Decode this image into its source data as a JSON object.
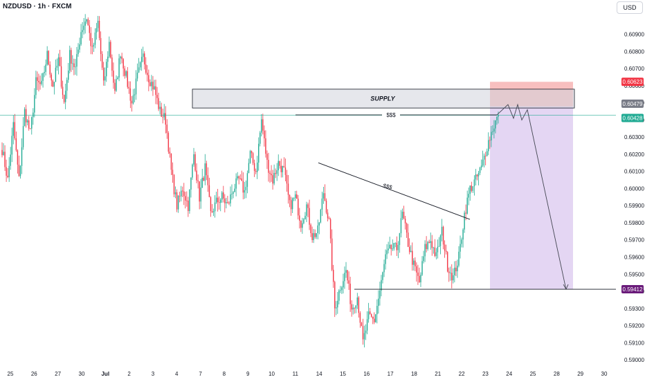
{
  "header": {
    "symbol_line": "NZDUSD · 1h · FXCM",
    "currency_button": "USD"
  },
  "colors": {
    "up": "#22ab94",
    "down": "#f23645",
    "supply_fill": "#d1d4dc",
    "stop_zone": "#f7b4b4",
    "target_zone": "#e1d2f2",
    "price_line": "#22ab94",
    "target_label": "#6a1b7a",
    "stop_label": "#f23645"
  },
  "chart_data": {
    "type": "candlestick",
    "ylim": [
      0.5898,
      0.6104
    ],
    "y_ticks": [
      "0.60900",
      "0.60800",
      "0.60700",
      "0.60600",
      "0.60500",
      "0.60400",
      "0.60300",
      "0.60200",
      "0.60100",
      "0.60000",
      "0.59900",
      "0.59800",
      "0.59700",
      "0.59600",
      "0.59500",
      "0.59400",
      "0.59300",
      "0.59200",
      "0.59100",
      "0.59000"
    ],
    "x_ticks": [
      "25",
      "26",
      "27",
      "30",
      "Jul",
      "2",
      "3",
      "4",
      "7",
      "8",
      "9",
      "10",
      "11",
      "14",
      "15",
      "16",
      "17",
      "18",
      "21",
      "22",
      "23",
      "24",
      "25",
      "28",
      "29",
      "30"
    ],
    "anchors": [
      [
        0,
        0.6023
      ],
      [
        4,
        0.6005
      ],
      [
        8,
        0.6037
      ],
      [
        12,
        0.6005
      ],
      [
        16,
        0.6045
      ],
      [
        20,
        0.6032
      ],
      [
        24,
        0.6062
      ],
      [
        28,
        0.606
      ],
      [
        32,
        0.6078
      ],
      [
        36,
        0.606
      ],
      [
        40,
        0.6075
      ],
      [
        44,
        0.605
      ],
      [
        48,
        0.6078
      ],
      [
        52,
        0.607
      ],
      [
        56,
        0.6092
      ],
      [
        60,
        0.61
      ],
      [
        64,
        0.608
      ],
      [
        68,
        0.6097
      ],
      [
        72,
        0.606
      ],
      [
        76,
        0.6085
      ],
      [
        80,
        0.6055
      ],
      [
        84,
        0.608
      ],
      [
        88,
        0.6065
      ],
      [
        92,
        0.605
      ],
      [
        96,
        0.6065
      ],
      [
        100,
        0.6077
      ],
      [
        104,
        0.6065
      ],
      [
        108,
        0.6058
      ],
      [
        112,
        0.6045
      ],
      [
        116,
        0.604
      ],
      [
        120,
        0.601
      ],
      [
        124,
        0.599
      ],
      [
        128,
        0.6
      ],
      [
        132,
        0.599
      ],
      [
        136,
        0.602
      ],
      [
        140,
        0.5995
      ],
      [
        144,
        0.6012
      ],
      [
        148,
        0.5985
      ],
      [
        152,
        0.5992
      ],
      [
        156,
        0.5995
      ],
      [
        160,
        0.599
      ],
      [
        164,
        0.6
      ],
      [
        168,
        0.6005
      ],
      [
        172,
        0.5998
      ],
      [
        176,
        0.602
      ],
      [
        180,
        0.601
      ],
      [
        184,
        0.604
      ],
      [
        188,
        0.6015
      ],
      [
        192,
        0.6005
      ],
      [
        196,
        0.6015
      ],
      [
        200,
        0.601
      ],
      [
        204,
        0.599
      ],
      [
        208,
        0.5995
      ],
      [
        212,
        0.598
      ],
      [
        216,
        0.599
      ],
      [
        220,
        0.5972
      ],
      [
        224,
        0.5975
      ],
      [
        228,
        0.5998
      ],
      [
        232,
        0.598
      ],
      [
        236,
        0.593
      ],
      [
        240,
        0.5943
      ],
      [
        244,
        0.5952
      ],
      [
        248,
        0.593
      ],
      [
        252,
        0.5937
      ],
      [
        256,
        0.591
      ],
      [
        260,
        0.5925
      ],
      [
        264,
        0.5923
      ],
      [
        268,
        0.594
      ],
      [
        272,
        0.596
      ],
      [
        276,
        0.5965
      ],
      [
        280,
        0.5965
      ],
      [
        284,
        0.5985
      ],
      [
        288,
        0.5968
      ],
      [
        292,
        0.5955
      ],
      [
        296,
        0.5945
      ],
      [
        300,
        0.5965
      ],
      [
        304,
        0.597
      ],
      [
        308,
        0.596
      ],
      [
        312,
        0.5975
      ],
      [
        316,
        0.5955
      ],
      [
        320,
        0.5948
      ],
      [
        324,
        0.596
      ],
      [
        328,
        0.5985
      ],
      [
        332,
        0.6
      ],
      [
        336,
        0.6005
      ],
      [
        340,
        0.6012
      ],
      [
        344,
        0.6025
      ],
      [
        348,
        0.6035
      ],
      [
        352,
        0.6043
      ]
    ],
    "n_candles": 353,
    "supply_zone": {
      "label": "SUPPLY",
      "low": 0.6047,
      "high": 0.6058
    },
    "position": {
      "entry": 0.60479,
      "stop": 0.60623,
      "target": 0.59412
    },
    "liquidity_label": "$$$",
    "liquidity_level": 0.6043,
    "liquidity_trendline": {
      "from": 0.6015,
      "to": 0.5982
    },
    "projected_path": [
      0.6043,
      0.6049,
      0.6041,
      0.6049,
      0.604,
      0.6046,
      0.5941
    ],
    "price_labels": [
      {
        "text": "0.60623",
        "value": 0.60623,
        "kind": "stop"
      },
      {
        "text": "0.60479",
        "value": 0.60479,
        "kind": "entry"
      },
      {
        "text": "0.60428",
        "value": 0.60428,
        "kind": "current"
      },
      {
        "text": "0.59412",
        "value": 0.59412,
        "kind": "target"
      }
    ]
  }
}
